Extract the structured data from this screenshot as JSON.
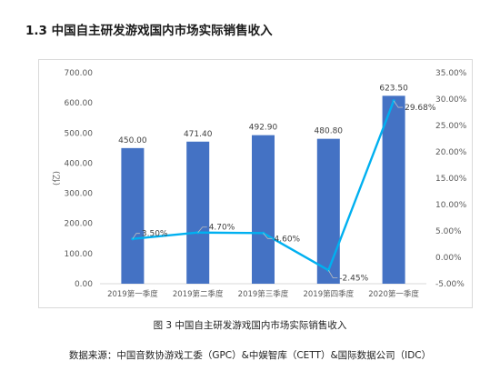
{
  "section_title": "1.3  中国自主研发游戏国内市场实际销售收入",
  "caption": "图 3  中国自主研发游戏国内市场实际销售收入",
  "source": "数据来源：中国音数协游戏工委（GPC）&中娱智库（CETT）&国际数据公司（IDC）",
  "chart_data": {
    "type": "bar",
    "categories": [
      "2019第一季度",
      "2019第二季度",
      "2019第三季度",
      "2019第四季度",
      "2020第一季度"
    ],
    "series": [
      {
        "type": "bar",
        "axis": "left",
        "values": [
          450.0,
          471.4,
          492.9,
          480.8,
          623.5
        ],
        "labels": [
          "450.00",
          "471.40",
          "492.90",
          "480.80",
          "623.50"
        ]
      },
      {
        "type": "line",
        "axis": "right",
        "values": [
          3.5,
          4.7,
          4.6,
          -2.45,
          29.68
        ],
        "labels": [
          "3.50%",
          "4.70%",
          "4.60%",
          "-2.45%",
          "29.68%"
        ]
      }
    ],
    "ylabel": "(亿)",
    "ylim": [
      0,
      700
    ],
    "yticks": [
      "0.00",
      "100.00",
      "200.00",
      "300.00",
      "400.00",
      "500.00",
      "600.00",
      "700.00"
    ],
    "y2lim": [
      -5,
      35
    ],
    "y2ticks": [
      "-5.00%",
      "0.00%",
      "5.00%",
      "10.00%",
      "15.00%",
      "20.00%",
      "25.00%",
      "30.00%",
      "35.00%"
    ],
    "grid": false,
    "colors": {
      "bar": "#4472C4",
      "line": "#00B0F0"
    }
  }
}
